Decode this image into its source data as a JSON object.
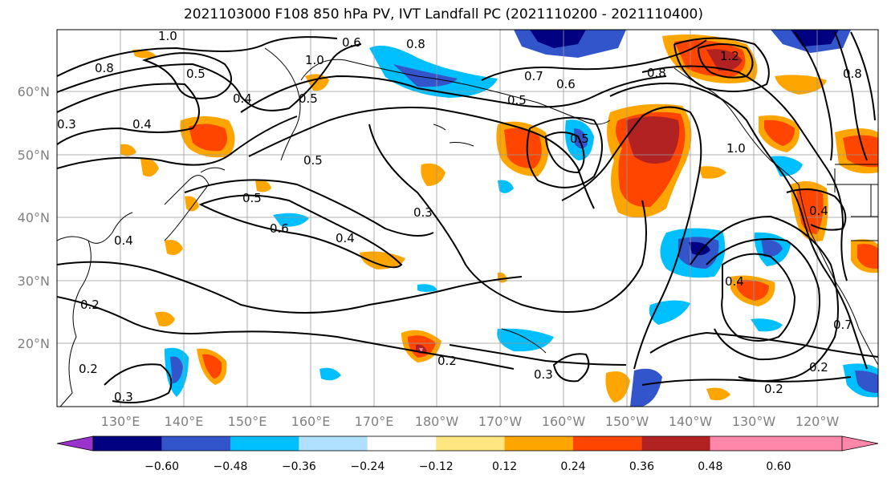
{
  "title": "2021103000 F108 850 hPa PV, IVT Landfall PC (2021110200 - 2021110400)",
  "lat_labels": [
    "60°N",
    "50°N",
    "40°N",
    "30°N",
    "20°N"
  ],
  "lon_labels": [
    "130°E",
    "140°E",
    "150°E",
    "160°E",
    "170°E",
    "180°W",
    "170°W",
    "160°W",
    "150°W",
    "140°W",
    "130°W",
    "120°W"
  ],
  "colorbar": {
    "colors": [
      "#9933cc",
      "#000080",
      "#3355cc",
      "#00bfff",
      "#b0e0ff",
      "#ffffff",
      "#ffe680",
      "#ffa500",
      "#ff4500",
      "#b22222",
      "#ff88aa"
    ],
    "labels": [
      "−0.60",
      "−0.48",
      "−0.36",
      "−0.24",
      "−0.12",
      "0.12",
      "0.24",
      "0.36",
      "0.48",
      "0.60"
    ]
  },
  "contour_labels": [
    "1.0",
    "0.8",
    "0.5",
    "0.4",
    "0.6",
    "0.8",
    "0.7",
    "0.6",
    "0.5",
    "1.0",
    "0.5",
    "0.5",
    "0.4",
    "0.6",
    "0.4",
    "0.3",
    "0.5",
    "0.4",
    "0.3",
    "0.2",
    "0.2",
    "0.3",
    "0.2",
    "0.3",
    "0.2",
    "1.2",
    "0.8",
    "0.8",
    "0.4",
    "0.7",
    "0.5",
    "1.0",
    "0.2",
    "0.4"
  ]
}
